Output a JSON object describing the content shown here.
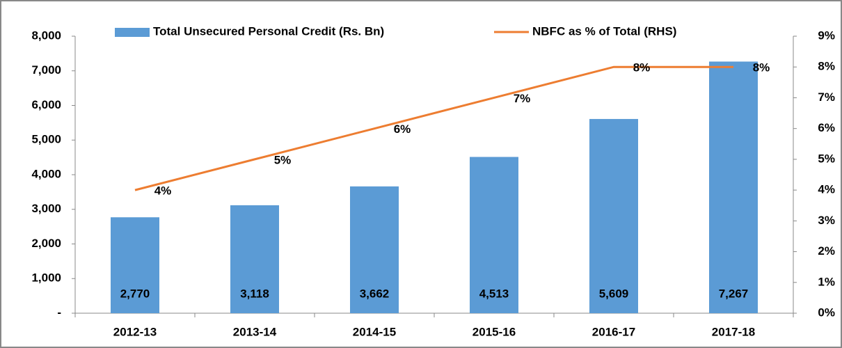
{
  "chart_data": {
    "type": "bar_line",
    "categories": [
      "2012-13",
      "2013-14",
      "2014-15",
      "2015-16",
      "2016-17",
      "2017-18"
    ],
    "series": [
      {
        "name": "Total Unsecured Personal Credit (Rs. Bn)",
        "color": "#5b9bd5",
        "type": "bar",
        "values": [
          2770,
          3118,
          3662,
          4513,
          5609,
          7267
        ],
        "value_labels": [
          "2,770",
          "3,118",
          "3,662",
          "4,513",
          "5,609",
          "7,267"
        ]
      },
      {
        "name": "NBFC as % of Total (RHS)",
        "color": "#ed7d31",
        "type": "line",
        "axis": "y2",
        "values": [
          4,
          5,
          6,
          7,
          8,
          8
        ],
        "value_labels": [
          "4%",
          "5%",
          "6%",
          "7%",
          "8%",
          "8%"
        ]
      }
    ],
    "ylim": [
      0,
      8000
    ],
    "yticks": [
      {
        "value": 0,
        "label": "-"
      },
      {
        "value": 1000,
        "label": "1,000"
      },
      {
        "value": 2000,
        "label": "2,000"
      },
      {
        "value": 3000,
        "label": "3,000"
      },
      {
        "value": 4000,
        "label": "4,000"
      },
      {
        "value": 5000,
        "label": "5,000"
      },
      {
        "value": 6000,
        "label": "6,000"
      },
      {
        "value": 7000,
        "label": "7,000"
      },
      {
        "value": 8000,
        "label": "8,000"
      }
    ],
    "y2lim": [
      0,
      9
    ],
    "y2ticks": [
      {
        "value": 0,
        "label": "0%"
      },
      {
        "value": 1,
        "label": "1%"
      },
      {
        "value": 2,
        "label": "2%"
      },
      {
        "value": 3,
        "label": "3%"
      },
      {
        "value": 4,
        "label": "4%"
      },
      {
        "value": 5,
        "label": "5%"
      },
      {
        "value": 6,
        "label": "6%"
      },
      {
        "value": 7,
        "label": "7%"
      },
      {
        "value": 8,
        "label": "8%"
      },
      {
        "value": 9,
        "label": "9%"
      }
    ],
    "legend": "top"
  }
}
